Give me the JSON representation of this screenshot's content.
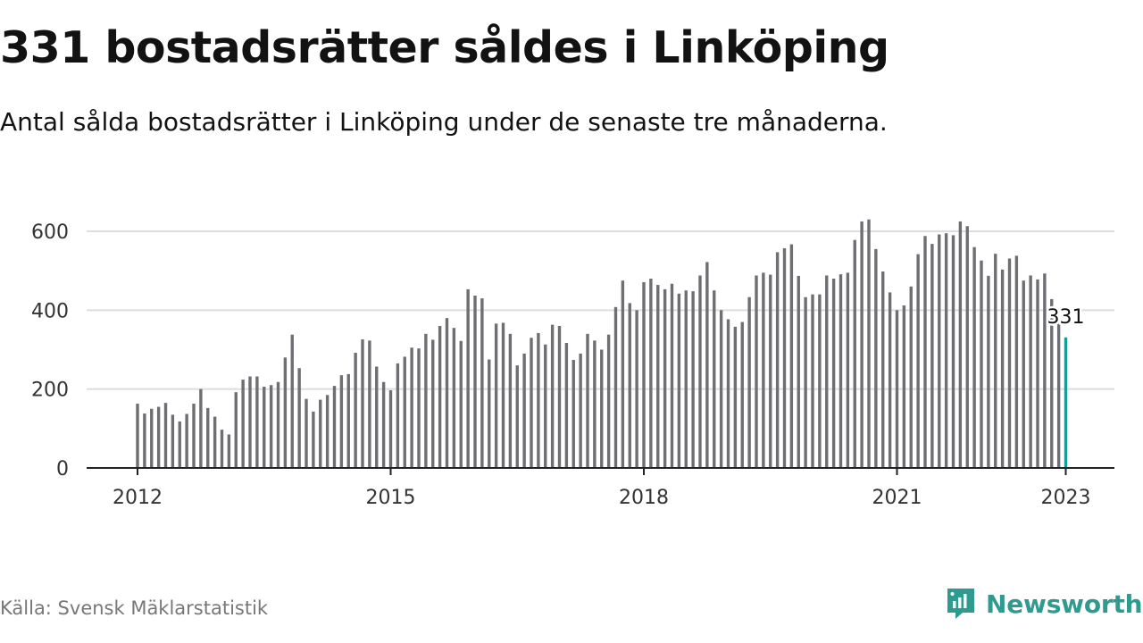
{
  "title": "331 bostadsrätter såldes i Linköping",
  "subtitle": "Antal sålda bostadsrätter i Linköping under de senaste tre månaderna.",
  "source": "Källa: Svensk Mäklarstatistik",
  "brand": {
    "name": "Newsworthy",
    "icon": "newsworthy-logo-icon",
    "color": "#2f9a8f"
  },
  "colors": {
    "bar": "#6e6e73",
    "highlight": "#1a9c96",
    "grid": "#dddddd",
    "axis": "#222222"
  },
  "chart_data": {
    "type": "bar",
    "x_start": "2012-01",
    "x_step": "month",
    "xticks": [
      "2012",
      "2015",
      "2018",
      "2021",
      "2023"
    ],
    "yticks": [
      "0",
      "200",
      "400",
      "600"
    ],
    "ylim": [
      0,
      640
    ],
    "grid": true,
    "highlight_label": "331",
    "values": [
      163,
      138,
      150,
      155,
      165,
      135,
      118,
      137,
      163,
      200,
      152,
      130,
      97,
      85,
      192,
      224,
      232,
      232,
      206,
      210,
      218,
      280,
      338,
      253,
      175,
      143,
      173,
      185,
      208,
      235,
      238,
      292,
      326,
      323,
      257,
      218,
      197,
      265,
      282,
      305,
      303,
      340,
      325,
      360,
      380,
      355,
      322,
      453,
      437,
      430,
      275,
      366,
      368,
      340,
      260,
      290,
      330,
      342,
      313,
      363,
      360,
      317,
      274,
      290,
      340,
      323,
      300,
      338,
      408,
      475,
      418,
      400,
      471,
      480,
      464,
      453,
      467,
      442,
      450,
      448,
      488,
      522,
      450,
      400,
      377,
      358,
      370,
      433,
      488,
      495,
      490,
      547,
      557,
      567,
      487,
      433,
      440,
      440,
      488,
      480,
      491,
      495,
      578,
      625,
      630,
      555,
      498,
      445,
      400,
      412,
      460,
      542,
      588,
      568,
      592,
      595,
      590,
      625,
      613,
      560,
      526,
      487,
      543,
      503,
      531,
      538,
      475,
      488,
      478,
      493,
      428,
      375,
      331
    ]
  }
}
